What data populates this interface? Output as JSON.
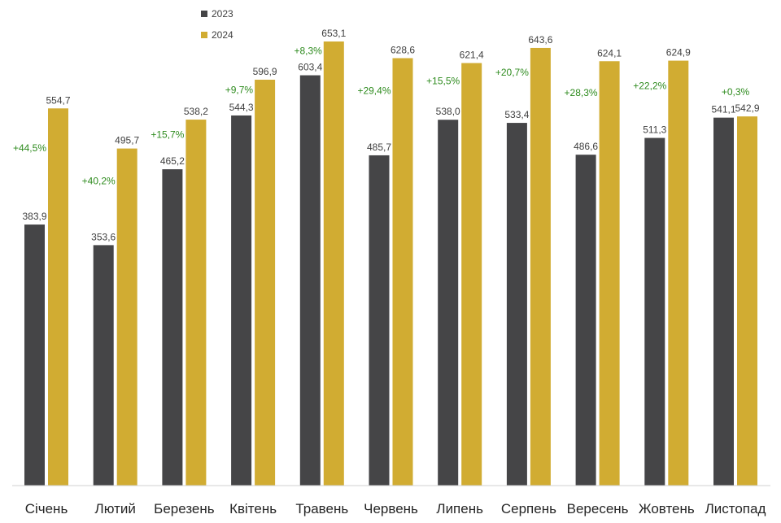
{
  "chart_data": {
    "type": "bar",
    "categories": [
      "Січень",
      "Лютий",
      "Березень",
      "Квітень",
      "Травень",
      "Червень",
      "Липень",
      "Серпень",
      "Вересень",
      "Жовтень",
      "Листопад"
    ],
    "series": [
      {
        "name": "2023",
        "color": "#454547",
        "values": [
          383.9,
          353.6,
          465.2,
          544.3,
          603.4,
          485.7,
          538.0,
          533.4,
          486.6,
          511.3,
          541.1
        ],
        "labels": [
          "383,9",
          "353,6",
          "465,2",
          "544,3",
          "603,4",
          "485,7",
          "538,0",
          "533,4",
          "486,6",
          "511,3",
          "541,1"
        ]
      },
      {
        "name": "2024",
        "color": "#d1ac32",
        "values": [
          554.7,
          495.7,
          538.2,
          596.9,
          653.1,
          628.6,
          621.4,
          643.6,
          624.1,
          624.9,
          542.9
        ],
        "labels": [
          "554,7",
          "495,7",
          "538,2",
          "596,9",
          "653,1",
          "628,6",
          "621,4",
          "643,6",
          "624,1",
          "624,9",
          "542,9"
        ]
      }
    ],
    "changes": [
      "+44,5%",
      "+40,2%",
      "+15,7%",
      "+9,7%",
      "+8,3%",
      "+29,4%",
      "+15,5%",
      "+20,7%",
      "+28,3%",
      "+22,2%",
      "+0,3%"
    ],
    "change_color": "#2e8b1e",
    "legend_position": "top-left",
    "ylim": [
      0,
      700
    ],
    "grid": false,
    "title": "",
    "xlabel": "",
    "ylabel": ""
  }
}
